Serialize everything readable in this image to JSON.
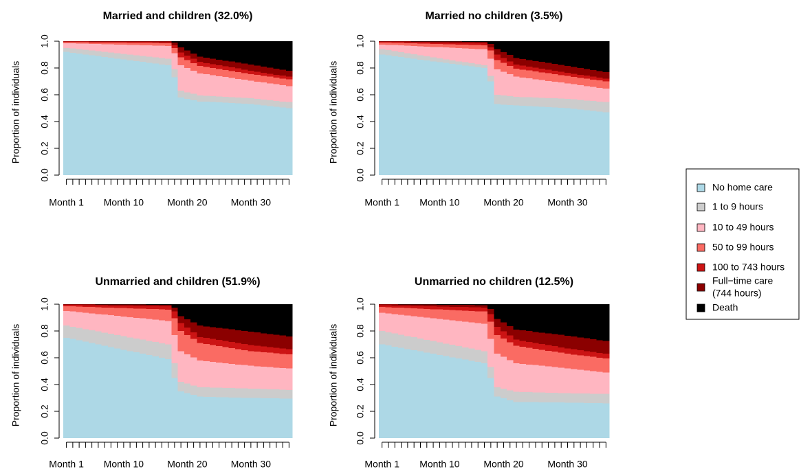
{
  "colors": {
    "No home care": "#add8e6",
    "1 to 9 hours": "#cccccc",
    "10 to 49 hours": "#ffb6c1",
    "50 to 99 hours": "#fa6b63",
    "100 to 743 hours": "#cc1414",
    "Full-time care": "#8b0000",
    "Death": "#000000"
  },
  "legend": {
    "items": [
      {
        "key": "No home care",
        "lines": [
          "No home care"
        ]
      },
      {
        "key": "1 to 9 hours",
        "lines": [
          "1 to 9 hours"
        ]
      },
      {
        "key": "10 to 49 hours",
        "lines": [
          "10 to 49 hours"
        ]
      },
      {
        "key": "50 to 99 hours",
        "lines": [
          "50 to 99 hours"
        ]
      },
      {
        "key": "100 to 743 hours",
        "lines": [
          "100 to 743 hours"
        ]
      },
      {
        "key": "Full-time care",
        "lines": [
          "Full−time care",
          "(744 hours)"
        ]
      },
      {
        "key": "Death",
        "lines": [
          "Death"
        ]
      }
    ]
  },
  "chart_data": [
    {
      "type": "area",
      "title": "Married and children (32.0%)",
      "xlabel": "",
      "ylabel": "Proportion of individuals",
      "ylim": [
        0,
        1
      ],
      "yticks": [
        "0.0",
        "0.2",
        "0.4",
        "0.6",
        "0.8",
        "1.0"
      ],
      "xtick_labels": [
        {
          "month": 1,
          "label": "Month 1"
        },
        {
          "month": 10,
          "label": "Month 10"
        },
        {
          "month": 20,
          "label": "Month 20"
        },
        {
          "month": 30,
          "label": "Month 30"
        }
      ],
      "months": 36,
      "series_order": [
        "No home care",
        "1 to 9 hours",
        "10 to 49 hours",
        "50 to 99 hours",
        "100 to 743 hours",
        "Full-time care",
        "Death"
      ],
      "cumulative_upper": [
        {
          "month": 1,
          "values": [
            0.92,
            0.95,
            0.985,
            0.993,
            0.997,
            1.0,
            1.0
          ]
        },
        {
          "month": 17,
          "values": [
            0.82,
            0.87,
            0.965,
            0.985,
            0.993,
            1.0,
            1.0
          ]
        },
        {
          "month": 18,
          "values": [
            0.73,
            0.79,
            0.91,
            0.95,
            0.97,
            0.99,
            1.0
          ]
        },
        {
          "month": 19,
          "values": [
            0.58,
            0.63,
            0.82,
            0.88,
            0.915,
            0.955,
            1.0
          ]
        },
        {
          "month": 22,
          "values": [
            0.55,
            0.595,
            0.76,
            0.815,
            0.845,
            0.885,
            1.0
          ]
        },
        {
          "month": 30,
          "values": [
            0.53,
            0.575,
            0.705,
            0.755,
            0.78,
            0.825,
            1.0
          ]
        },
        {
          "month": 36,
          "values": [
            0.5,
            0.545,
            0.665,
            0.715,
            0.735,
            0.78,
            1.0
          ]
        }
      ]
    },
    {
      "type": "area",
      "title": "Married no children (3.5%)",
      "xlabel": "",
      "ylabel": "Proportion of individuals",
      "ylim": [
        0,
        1
      ],
      "yticks": [
        "0.0",
        "0.2",
        "0.4",
        "0.6",
        "0.8",
        "1.0"
      ],
      "xtick_labels": [
        {
          "month": 1,
          "label": "Month 1"
        },
        {
          "month": 10,
          "label": "Month 10"
        },
        {
          "month": 20,
          "label": "Month 20"
        },
        {
          "month": 30,
          "label": "Month 30"
        }
      ],
      "months": 36,
      "series_order": [
        "No home care",
        "1 to 9 hours",
        "10 to 49 hours",
        "50 to 99 hours",
        "100 to 743 hours",
        "Full-time care",
        "Death"
      ],
      "cumulative_upper": [
        {
          "month": 1,
          "values": [
            0.9,
            0.94,
            0.975,
            0.99,
            0.996,
            1.0,
            1.0
          ]
        },
        {
          "month": 17,
          "values": [
            0.8,
            0.82,
            0.94,
            0.97,
            0.985,
            0.995,
            1.0
          ]
        },
        {
          "month": 18,
          "values": [
            0.7,
            0.74,
            0.87,
            0.93,
            0.955,
            0.98,
            1.0
          ]
        },
        {
          "month": 19,
          "values": [
            0.53,
            0.6,
            0.79,
            0.86,
            0.9,
            0.94,
            1.0
          ]
        },
        {
          "month": 22,
          "values": [
            0.52,
            0.585,
            0.735,
            0.795,
            0.825,
            0.875,
            1.0
          ]
        },
        {
          "month": 30,
          "values": [
            0.5,
            0.57,
            0.685,
            0.74,
            0.765,
            0.815,
            1.0
          ]
        },
        {
          "month": 36,
          "values": [
            0.47,
            0.545,
            0.645,
            0.7,
            0.72,
            0.77,
            1.0
          ]
        }
      ]
    },
    {
      "type": "area",
      "title": "Unmarried and children (51.9%)",
      "xlabel": "",
      "ylabel": "Proportion of individuals",
      "ylim": [
        0,
        1
      ],
      "yticks": [
        "0.0",
        "0.2",
        "0.4",
        "0.6",
        "0.8",
        "1.0"
      ],
      "xtick_labels": [
        {
          "month": 1,
          "label": "Month 1"
        },
        {
          "month": 10,
          "label": "Month 10"
        },
        {
          "month": 20,
          "label": "Month 20"
        },
        {
          "month": 30,
          "label": "Month 30"
        }
      ],
      "months": 36,
      "series_order": [
        "No home care",
        "1 to 9 hours",
        "10 to 49 hours",
        "50 to 99 hours",
        "100 to 743 hours",
        "Full-time care",
        "Death"
      ],
      "cumulative_upper": [
        {
          "month": 1,
          "values": [
            0.75,
            0.84,
            0.95,
            0.985,
            0.995,
            1.0,
            1.0
          ]
        },
        {
          "month": 17,
          "values": [
            0.59,
            0.7,
            0.875,
            0.96,
            0.985,
            0.995,
            1.0
          ]
        },
        {
          "month": 18,
          "values": [
            0.45,
            0.56,
            0.77,
            0.895,
            0.945,
            0.975,
            1.0
          ]
        },
        {
          "month": 19,
          "values": [
            0.35,
            0.42,
            0.65,
            0.8,
            0.86,
            0.91,
            1.0
          ]
        },
        {
          "month": 22,
          "values": [
            0.31,
            0.38,
            0.58,
            0.71,
            0.755,
            0.84,
            1.0
          ]
        },
        {
          "month": 30,
          "values": [
            0.3,
            0.37,
            0.54,
            0.65,
            0.695,
            0.795,
            1.0
          ]
        },
        {
          "month": 36,
          "values": [
            0.295,
            0.36,
            0.52,
            0.625,
            0.665,
            0.76,
            1.0
          ]
        }
      ]
    },
    {
      "type": "area",
      "title": "Unmarried no children (12.5%)",
      "xlabel": "",
      "ylabel": "Proportion of individuals",
      "ylim": [
        0,
        1
      ],
      "yticks": [
        "0.0",
        "0.2",
        "0.4",
        "0.6",
        "0.8",
        "1.0"
      ],
      "xtick_labels": [
        {
          "month": 1,
          "label": "Month 1"
        },
        {
          "month": 10,
          "label": "Month 10"
        },
        {
          "month": 20,
          "label": "Month 20"
        },
        {
          "month": 30,
          "label": "Month 30"
        }
      ],
      "months": 36,
      "series_order": [
        "No home care",
        "1 to 9 hours",
        "10 to 49 hours",
        "50 to 99 hours",
        "100 to 743 hours",
        "Full-time care",
        "Death"
      ],
      "cumulative_upper": [
        {
          "month": 1,
          "values": [
            0.7,
            0.8,
            0.935,
            0.98,
            0.993,
            1.0,
            1.0
          ]
        },
        {
          "month": 17,
          "values": [
            0.56,
            0.65,
            0.855,
            0.945,
            0.975,
            0.993,
            1.0
          ]
        },
        {
          "month": 18,
          "values": [
            0.45,
            0.53,
            0.74,
            0.87,
            0.925,
            0.965,
            1.0
          ]
        },
        {
          "month": 19,
          "values": [
            0.31,
            0.38,
            0.63,
            0.77,
            0.83,
            0.89,
            1.0
          ]
        },
        {
          "month": 22,
          "values": [
            0.27,
            0.345,
            0.56,
            0.69,
            0.735,
            0.81,
            1.0
          ]
        },
        {
          "month": 30,
          "values": [
            0.265,
            0.335,
            0.52,
            0.63,
            0.67,
            0.765,
            1.0
          ]
        },
        {
          "month": 36,
          "values": [
            0.26,
            0.33,
            0.49,
            0.595,
            0.63,
            0.725,
            1.0
          ]
        }
      ]
    }
  ]
}
